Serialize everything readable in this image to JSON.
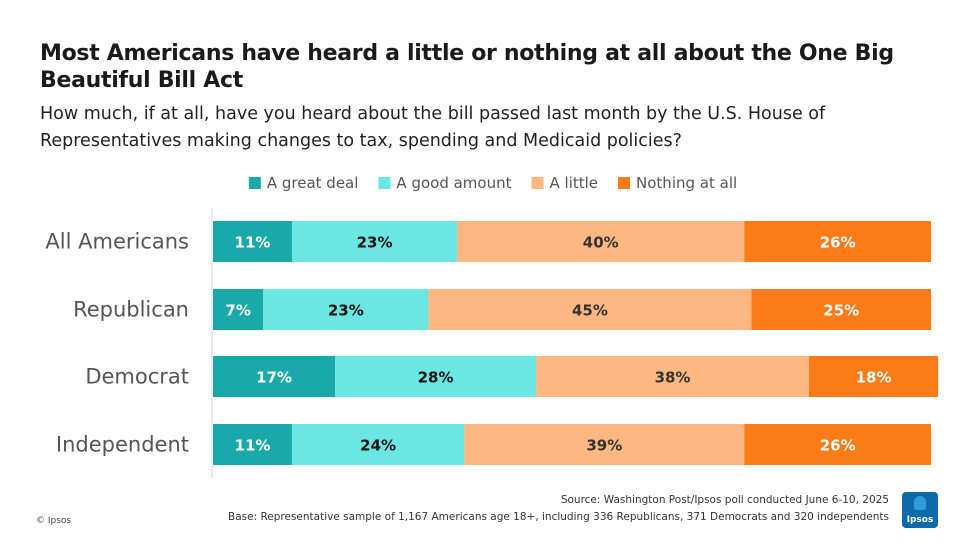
{
  "title": "Most Americans have heard a little or nothing at all about the One Big Beautiful Bill Act",
  "subtitle": "How much, if at all, have you heard about the bill passed last month by the U.S.  House of Representatives making changes to tax, spending and Medicaid policies?",
  "source": "Source: Washington Post/Ipsos poll conducted June 6-10, 2025",
  "base": "Base: Representative sample of  1,167 Americans age 18+, including 336 Republicans, 371 Democrats and 320 independents",
  "copyright": "© Ipsos",
  "logo_text": "Ipsos",
  "colors": {
    "a_great_deal": "#1aa9a9",
    "a_good_amount": "#6ae6e3",
    "a_little": "#fdb882",
    "nothing_at_all": "#fa7b18",
    "axis": "#d9d9d9"
  },
  "chart_data": {
    "type": "bar",
    "orientation": "horizontal",
    "stacked": true,
    "title": "Most Americans have heard a little or nothing at all about the One Big Beautiful Bill Act",
    "categories": [
      "All Americans",
      "Republican",
      "Democrat",
      "Independent"
    ],
    "series": [
      {
        "name": "A great deal",
        "values": [
          11,
          7,
          17,
          11
        ],
        "labels": [
          "11%",
          "7%",
          "17%",
          "11%"
        ],
        "color": "#1aa9a9",
        "label_color": "#ffffff"
      },
      {
        "name": "A good amount",
        "values": [
          23,
          23,
          28,
          24
        ],
        "labels": [
          "23%",
          "23%",
          "28%",
          "24%"
        ],
        "color": "#6ae6e3",
        "label_color": "#111111"
      },
      {
        "name": "A little",
        "values": [
          40,
          45,
          38,
          39
        ],
        "labels": [
          "40%",
          "45%",
          "38%",
          "39%"
        ],
        "color": "#fdb882",
        "label_color": "#333333"
      },
      {
        "name": "Nothing at all",
        "values": [
          26,
          25,
          18,
          26
        ],
        "labels": [
          "26%",
          "25%",
          "18%",
          "26%"
        ],
        "color": "#fa7b18",
        "label_color": "#ffffff"
      }
    ],
    "xlim": [
      0,
      100
    ],
    "legend": "top-center",
    "grid": false,
    "unit": "%"
  }
}
